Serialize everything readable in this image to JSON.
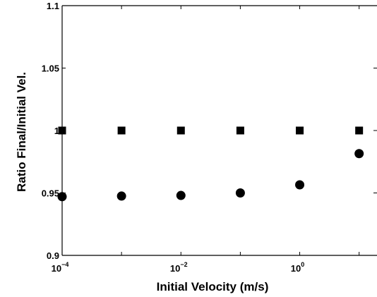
{
  "chart_data": {
    "type": "scatter",
    "xlabel": "Initial Velocity (m/s)",
    "ylabel": "Ratio Final/Initial Vel.",
    "xscale": "log",
    "xlim": [
      0.0001,
      20
    ],
    "ylim": [
      0.9,
      1.1
    ],
    "grid": false,
    "legend": "none",
    "x_ticks": [
      {
        "value": 0.0001,
        "base": "10",
        "exp": "−4"
      },
      {
        "value": 0.01,
        "base": "10",
        "exp": "−2"
      },
      {
        "value": 1,
        "base": "10",
        "exp": "0"
      }
    ],
    "y_ticks": [
      {
        "value": 0.9,
        "label": "0.9"
      },
      {
        "value": 0.95,
        "label": "0.95"
      },
      {
        "value": 1.0,
        "label": "1"
      },
      {
        "value": 1.05,
        "label": "1.05"
      },
      {
        "value": 1.1,
        "label": "1.1"
      }
    ],
    "series": [
      {
        "marker": "square",
        "color": "#000000",
        "x": [
          0.0001,
          0.001,
          0.01,
          0.1,
          1,
          10
        ],
        "y": [
          1.0,
          1.0,
          1.0,
          1.0,
          1.0,
          1.0
        ]
      },
      {
        "marker": "circle",
        "color": "#000000",
        "x": [
          0.0001,
          0.001,
          0.01,
          0.1,
          1,
          10
        ],
        "y": [
          0.947,
          0.9475,
          0.948,
          0.95,
          0.9565,
          0.9815
        ]
      }
    ]
  }
}
